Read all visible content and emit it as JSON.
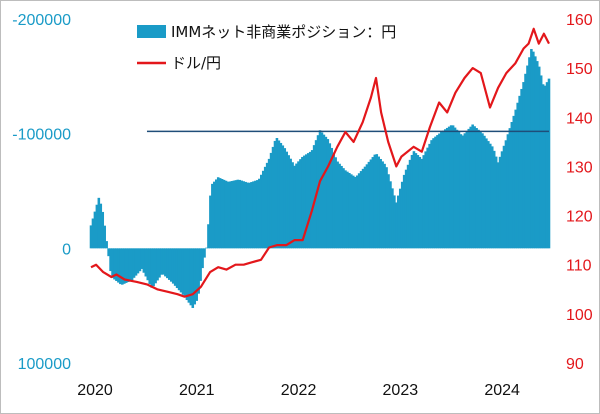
{
  "chart_data": {
    "type": "bar+line",
    "title": "",
    "colors": {
      "bar": "#1a9bc7",
      "line": "#e3171b",
      "reference_line": "#1f4e79"
    },
    "legend": {
      "placement": "top-center",
      "entries": [
        {
          "label": "IMMネット非商業ポジション：円",
          "kind": "bar",
          "color": "#1a9bc7"
        },
        {
          "label": "ドル/円",
          "kind": "line",
          "color": "#e3171b"
        }
      ]
    },
    "x_axis": {
      "ticks": [
        "2020",
        "2021",
        "2022",
        "2023",
        "2024"
      ],
      "range": [
        2020.0,
        2024.5
      ]
    },
    "left_axis": {
      "inverted": true,
      "range": [
        -200000,
        100000
      ],
      "ticks": [
        {
          "value": -200000,
          "label": "-200000"
        },
        {
          "value": -100000,
          "label": "-100000"
        },
        {
          "value": 0,
          "label": "0"
        },
        {
          "value": 100000,
          "label": "100000"
        }
      ],
      "color": "#1a9bc7"
    },
    "right_axis": {
      "range": [
        90,
        160
      ],
      "ticks": [
        "90",
        "100",
        "110",
        "120",
        "130",
        "140",
        "150",
        "160"
      ],
      "color": "#e3171b"
    },
    "reference_line": {
      "position": "net yen position -102000",
      "from_x": 2020.55,
      "to_x": 2024.5
    },
    "series": [
      {
        "name": "IMMネット非商業ポジション：円",
        "axis": "left",
        "kind": "bar",
        "points": [
          [
            2020.0,
            -20000
          ],
          [
            2020.08,
            -45000
          ],
          [
            2020.12,
            -30000
          ],
          [
            2020.16,
            -2000
          ],
          [
            2020.2,
            25000
          ],
          [
            2020.3,
            32000
          ],
          [
            2020.4,
            28000
          ],
          [
            2020.5,
            18000
          ],
          [
            2020.6,
            35000
          ],
          [
            2020.7,
            22000
          ],
          [
            2020.8,
            30000
          ],
          [
            2020.9,
            40000
          ],
          [
            2021.0,
            52000
          ],
          [
            2021.05,
            44000
          ],
          [
            2021.1,
            15000
          ],
          [
            2021.14,
            -3000
          ],
          [
            2021.18,
            -55000
          ],
          [
            2021.25,
            -62000
          ],
          [
            2021.35,
            -58000
          ],
          [
            2021.45,
            -60000
          ],
          [
            2021.55,
            -57000
          ],
          [
            2021.65,
            -60000
          ],
          [
            2021.75,
            -78000
          ],
          [
            2021.82,
            -97000
          ],
          [
            2021.9,
            -88000
          ],
          [
            2022.0,
            -72000
          ],
          [
            2022.08,
            -80000
          ],
          [
            2022.17,
            -85000
          ],
          [
            2022.25,
            -103000
          ],
          [
            2022.33,
            -95000
          ],
          [
            2022.42,
            -76000
          ],
          [
            2022.5,
            -68000
          ],
          [
            2022.6,
            -62000
          ],
          [
            2022.7,
            -72000
          ],
          [
            2022.8,
            -83000
          ],
          [
            2022.9,
            -72000
          ],
          [
            2023.0,
            -40000
          ],
          [
            2023.08,
            -65000
          ],
          [
            2023.17,
            -85000
          ],
          [
            2023.25,
            -78000
          ],
          [
            2023.35,
            -95000
          ],
          [
            2023.45,
            -102000
          ],
          [
            2023.55,
            -108000
          ],
          [
            2023.65,
            -98000
          ],
          [
            2023.75,
            -108000
          ],
          [
            2023.85,
            -100000
          ],
          [
            2023.95,
            -88000
          ],
          [
            2024.0,
            -75000
          ],
          [
            2024.08,
            -95000
          ],
          [
            2024.17,
            -120000
          ],
          [
            2024.25,
            -145000
          ],
          [
            2024.33,
            -175000
          ],
          [
            2024.4,
            -160000
          ],
          [
            2024.45,
            -140000
          ],
          [
            2024.5,
            -148000
          ]
        ]
      },
      {
        "name": "ドル/円",
        "axis": "right",
        "kind": "line",
        "points": [
          [
            2020.0,
            109.5
          ],
          [
            2020.05,
            110
          ],
          [
            2020.12,
            108.5
          ],
          [
            2020.2,
            107.5
          ],
          [
            2020.25,
            108
          ],
          [
            2020.33,
            107
          ],
          [
            2020.45,
            106.5
          ],
          [
            2020.55,
            106
          ],
          [
            2020.65,
            105
          ],
          [
            2020.75,
            104.5
          ],
          [
            2020.85,
            104
          ],
          [
            2020.92,
            103.5
          ],
          [
            2021.0,
            104
          ],
          [
            2021.08,
            105.5
          ],
          [
            2021.17,
            108.5
          ],
          [
            2021.25,
            109.5
          ],
          [
            2021.33,
            109
          ],
          [
            2021.42,
            110
          ],
          [
            2021.5,
            110
          ],
          [
            2021.58,
            110.5
          ],
          [
            2021.67,
            111
          ],
          [
            2021.75,
            113.5
          ],
          [
            2021.83,
            114
          ],
          [
            2021.92,
            114
          ],
          [
            2022.0,
            115
          ],
          [
            2022.08,
            115
          ],
          [
            2022.17,
            121
          ],
          [
            2022.25,
            127
          ],
          [
            2022.33,
            130
          ],
          [
            2022.42,
            134
          ],
          [
            2022.5,
            137
          ],
          [
            2022.58,
            135
          ],
          [
            2022.67,
            139
          ],
          [
            2022.75,
            144
          ],
          [
            2022.8,
            148
          ],
          [
            2022.85,
            141
          ],
          [
            2022.92,
            135
          ],
          [
            2023.0,
            130
          ],
          [
            2023.05,
            132
          ],
          [
            2023.17,
            134
          ],
          [
            2023.25,
            133
          ],
          [
            2023.33,
            138
          ],
          [
            2023.42,
            143
          ],
          [
            2023.5,
            141
          ],
          [
            2023.58,
            145
          ],
          [
            2023.67,
            148
          ],
          [
            2023.75,
            150
          ],
          [
            2023.83,
            149
          ],
          [
            2023.92,
            142
          ],
          [
            2024.0,
            146
          ],
          [
            2024.08,
            149
          ],
          [
            2024.17,
            151
          ],
          [
            2024.25,
            154
          ],
          [
            2024.3,
            155
          ],
          [
            2024.35,
            158
          ],
          [
            2024.4,
            155
          ],
          [
            2024.45,
            157
          ],
          [
            2024.5,
            155
          ]
        ]
      }
    ]
  }
}
